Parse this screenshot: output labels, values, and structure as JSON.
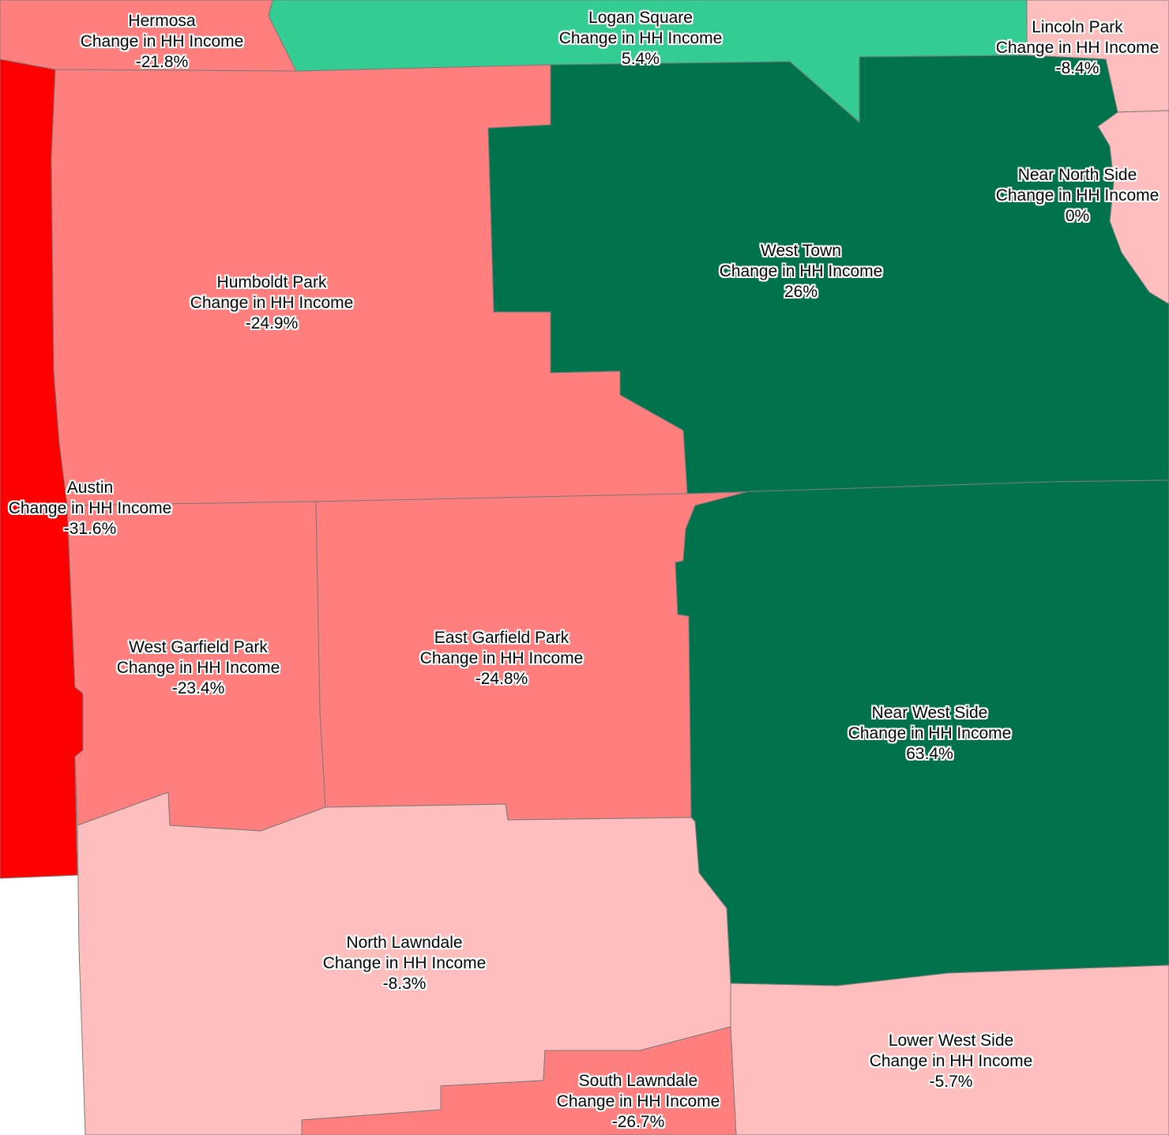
{
  "map": {
    "metric_label": "Change in HH Income",
    "colors": {
      "strong_decline": "#ff0000",
      "decline": "#ff7f7f",
      "slight_decline": "#ffbebe",
      "slight_increase": "#33cc92",
      "strong_increase": "#00734c"
    },
    "regions": [
      {
        "name": "Hermosa",
        "change": "-21.8%",
        "color_class": "decline"
      },
      {
        "name": "Logan Square",
        "change": "5.4%",
        "color_class": "slight_increase"
      },
      {
        "name": "Lincoln Park",
        "change": "-8.4%",
        "color_class": "slight_decline"
      },
      {
        "name": "Near North Side",
        "change": "0%",
        "color_class": "slight_decline"
      },
      {
        "name": "West Town",
        "change": "26%",
        "color_class": "strong_increase"
      },
      {
        "name": "Humboldt Park",
        "change": "-24.9%",
        "color_class": "decline"
      },
      {
        "name": "Austin",
        "change": "-31.6%",
        "color_class": "strong_decline"
      },
      {
        "name": "West Garfield Park",
        "change": "-23.4%",
        "color_class": "decline"
      },
      {
        "name": "East Garfield Park",
        "change": "-24.8%",
        "color_class": "decline"
      },
      {
        "name": "Near West Side",
        "change": "63.4%",
        "color_class": "strong_increase"
      },
      {
        "name": "North Lawndale",
        "change": "-8.3%",
        "color_class": "slight_decline"
      },
      {
        "name": "South Lawndale",
        "change": "-26.7%",
        "color_class": "decline"
      },
      {
        "name": "Lower West Side",
        "change": "-5.7%",
        "color_class": "slight_decline"
      }
    ]
  }
}
